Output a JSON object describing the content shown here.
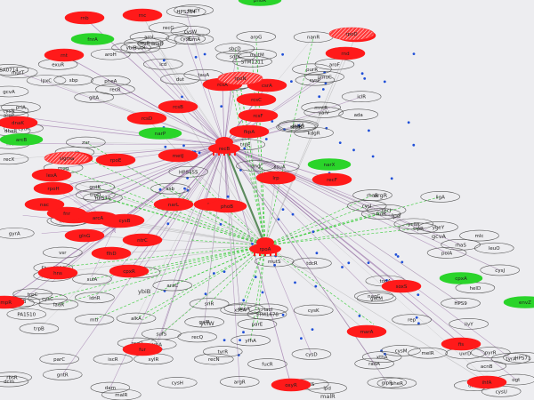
{
  "colors": {
    "background": "#ededf0",
    "red_node": "#ff1a1a",
    "green_node": "#2ad42a",
    "white_node_stroke": "#555555",
    "edge_purple": "#8a5a9a",
    "edge_green": "#33cc33",
    "edge_gray": "#9a9a9a",
    "dot_blue": "#1f4fd8"
  },
  "nodes": {
    "red": [
      {
        "id": "r1",
        "label": "rnb"
      },
      {
        "id": "r2",
        "label": "rnc"
      },
      {
        "id": "r3",
        "label": "rnt"
      },
      {
        "id": "r4",
        "label": "rnd"
      },
      {
        "id": "r5",
        "label": "rcsA"
      },
      {
        "id": "r6",
        "label": "rcsB"
      },
      {
        "id": "r7",
        "label": "rcsC"
      },
      {
        "id": "r8",
        "label": "rcsD"
      },
      {
        "id": "r9",
        "label": "rcsF"
      },
      {
        "id": "r10",
        "label": "fkpA"
      },
      {
        "id": "r11",
        "label": "dnaK"
      },
      {
        "id": "r12",
        "label": "htpG"
      },
      {
        "id": "r13",
        "label": "rpoS"
      },
      {
        "id": "r14",
        "label": "recA"
      },
      {
        "id": "r15",
        "label": "recF"
      },
      {
        "id": "r16",
        "label": "lexA"
      },
      {
        "id": "r17",
        "label": "rpoH"
      },
      {
        "id": "r18",
        "label": "flhD"
      },
      {
        "id": "r19",
        "label": "cpxR"
      },
      {
        "id": "r20",
        "label": "rpoE"
      },
      {
        "id": "r21",
        "label": "rseA"
      },
      {
        "id": "r22",
        "label": "hns"
      },
      {
        "id": "r23",
        "label": "ompR"
      },
      {
        "id": "r24",
        "label": "fur"
      },
      {
        "id": "r25",
        "label": "soxS"
      },
      {
        "id": "r26",
        "label": "marA"
      },
      {
        "id": "r27",
        "label": "oxyR"
      },
      {
        "id": "r28",
        "label": "ihfA"
      },
      {
        "id": "r29",
        "label": "fis"
      },
      {
        "id": "r30",
        "label": "arcA"
      },
      {
        "id": "r31",
        "label": "fnr"
      },
      {
        "id": "r32",
        "label": "narL"
      },
      {
        "id": "r33",
        "label": "phoB"
      },
      {
        "id": "r34",
        "label": "crp"
      },
      {
        "id": "r35",
        "label": "csrA"
      },
      {
        "id": "r36",
        "label": "lrp"
      },
      {
        "id": "r37",
        "label": "nac"
      },
      {
        "id": "r38",
        "label": "glnG"
      },
      {
        "id": "r39",
        "label": "ntrC"
      },
      {
        "id": "r40",
        "label": "cysB"
      },
      {
        "id": "r41",
        "label": "metJ"
      }
    ],
    "red_hatched": [
      {
        "id": "h1",
        "label": "rpoD"
      },
      {
        "id": "h2",
        "label": "rpoN"
      },
      {
        "id": "h3",
        "label": "sigma"
      }
    ],
    "hubs": [
      {
        "id": "hub1",
        "label": "recB"
      },
      {
        "id": "hub2",
        "label": "rpoA"
      }
    ],
    "green": [
      {
        "id": "g1",
        "label": "fnrA"
      },
      {
        "id": "g2",
        "label": "arcB"
      },
      {
        "id": "g3",
        "label": "narX"
      },
      {
        "id": "g4",
        "label": "cpxA"
      },
      {
        "id": "g5",
        "label": "envZ"
      },
      {
        "id": "g6",
        "label": "phoR"
      },
      {
        "id": "g7",
        "label": "narP"
      }
    ],
    "white": [
      {
        "id": "w1",
        "label": "cysE"
      },
      {
        "id": "w2",
        "label": "sbcD"
      },
      {
        "id": "w3",
        "label": "lpxC"
      },
      {
        "id": "w4",
        "label": "recR"
      },
      {
        "id": "w5",
        "label": "topB"
      },
      {
        "id": "w6",
        "label": "HPS10"
      },
      {
        "id": "w7",
        "label": "yjiG"
      },
      {
        "id": "w8",
        "label": "PA1510"
      },
      {
        "id": "w9",
        "label": "recO"
      },
      {
        "id": "w10",
        "label": "xseA"
      },
      {
        "id": "w11",
        "label": "mutS"
      },
      {
        "id": "w12",
        "label": "uvrD"
      },
      {
        "id": "w13",
        "label": "polA"
      },
      {
        "id": "w14",
        "label": "ligA"
      },
      {
        "id": "w15",
        "label": "recN"
      },
      {
        "id": "w16",
        "label": "radA"
      },
      {
        "id": "w17",
        "label": "recX"
      },
      {
        "id": "w18",
        "label": "sulA"
      },
      {
        "id": "w19",
        "label": "umuC"
      },
      {
        "id": "w20",
        "label": "dinB"
      },
      {
        "id": "w21",
        "label": "recG"
      },
      {
        "id": "w22",
        "label": "ruvC"
      },
      {
        "id": "w23",
        "label": "priA"
      },
      {
        "id": "w24",
        "label": "dnaB"
      },
      {
        "id": "w25",
        "label": "dnaG"
      },
      {
        "id": "w26",
        "label": "ssb"
      },
      {
        "id": "w27",
        "label": "gyrA"
      },
      {
        "id": "w28",
        "label": "gyrB"
      },
      {
        "id": "w29",
        "label": "parC"
      },
      {
        "id": "w30",
        "label": "parE"
      },
      {
        "id": "w31",
        "label": "topA"
      },
      {
        "id": "w32",
        "label": "rep"
      },
      {
        "id": "w33",
        "label": "helD"
      },
      {
        "id": "w34",
        "label": "recJ"
      },
      {
        "id": "w35",
        "label": "recQ"
      },
      {
        "id": "w36",
        "label": "xthA"
      },
      {
        "id": "w37",
        "label": "nfo"
      },
      {
        "id": "w38",
        "label": "alkA"
      },
      {
        "id": "w39",
        "label": "ada"
      },
      {
        "id": "w40",
        "label": "ogt"
      },
      {
        "id": "w41",
        "label": "mutY"
      },
      {
        "id": "w42",
        "label": "mutM"
      },
      {
        "id": "w43",
        "label": "mutT"
      },
      {
        "id": "w44",
        "label": "dut"
      },
      {
        "id": "w45",
        "label": "ung"
      },
      {
        "id": "w46",
        "label": "mug"
      },
      {
        "id": "w47",
        "label": "vsr"
      },
      {
        "id": "w48",
        "label": "dcm"
      },
      {
        "id": "w49",
        "label": "dam"
      },
      {
        "id": "w50",
        "label": "seqA"
      },
      {
        "id": "w51",
        "label": "STM1678"
      },
      {
        "id": "w52",
        "label": "HPS9"
      },
      {
        "id": "w53",
        "label": "ybeY"
      },
      {
        "id": "w54",
        "label": "yciW"
      },
      {
        "id": "w55",
        "label": "argR"
      },
      {
        "id": "w56",
        "label": "lpd"
      },
      {
        "id": "w57",
        "label": "gcvA"
      },
      {
        "id": "w58",
        "label": "Fbp_1758"
      },
      {
        "id": "w59",
        "label": "yaiV"
      },
      {
        "id": "w60",
        "label": "HPS71"
      },
      {
        "id": "w61",
        "label": "HPS264"
      },
      {
        "id": "w62",
        "label": "STM1211"
      },
      {
        "id": "w63",
        "label": "SA0714"
      },
      {
        "id": "w64",
        "label": "ybiB"
      },
      {
        "id": "w65",
        "label": "mntR"
      },
      {
        "id": "w66",
        "label": "zur"
      },
      {
        "id": "w67",
        "label": "modE"
      },
      {
        "id": "w68",
        "label": "nikR"
      },
      {
        "id": "w69",
        "label": "iscR"
      },
      {
        "id": "w70",
        "label": "sufS"
      },
      {
        "id": "w71",
        "label": "cysK"
      },
      {
        "id": "w72",
        "label": "cysM"
      },
      {
        "id": "w73",
        "label": "cysJ"
      },
      {
        "id": "w74",
        "label": "cysI"
      },
      {
        "id": "w75",
        "label": "cysH"
      },
      {
        "id": "w76",
        "label": "cysD"
      },
      {
        "id": "w77",
        "label": "cysN"
      },
      {
        "id": "w78",
        "label": "cysC"
      },
      {
        "id": "w79",
        "label": "cysP"
      },
      {
        "id": "w80",
        "label": "cysU"
      },
      {
        "id": "w81",
        "label": "cysW"
      },
      {
        "id": "w82",
        "label": "cysA"
      },
      {
        "id": "w83",
        "label": "sbp"
      },
      {
        "id": "w84",
        "label": "tauA"
      },
      {
        "id": "w85",
        "label": "ssuA"
      },
      {
        "id": "w86",
        "label": "HPS455"
      },
      {
        "id": "w87",
        "label": "Fbp_1818"
      },
      {
        "id": "w88",
        "label": "gntR"
      },
      {
        "id": "w89",
        "label": "malR"
      },
      {
        "id": "w90",
        "label": "yfhA"
      },
      {
        "id": "w91",
        "label": "tdcR"
      },
      {
        "id": "w92",
        "label": "ilvY"
      },
      {
        "id": "w93",
        "label": "leuO"
      },
      {
        "id": "w94",
        "label": "trpR"
      },
      {
        "id": "w95",
        "label": "tyrR"
      },
      {
        "id": "w96",
        "label": "pheR"
      },
      {
        "id": "w97",
        "label": "aroP"
      },
      {
        "id": "w98",
        "label": "mtr"
      },
      {
        "id": "w99",
        "label": "aroF"
      },
      {
        "id": "w100",
        "label": "tyrA"
      },
      {
        "id": "w101",
        "label": "aroL"
      },
      {
        "id": "w102",
        "label": "aroG"
      },
      {
        "id": "w103",
        "label": "pheA"
      },
      {
        "id": "w104",
        "label": "aroH"
      },
      {
        "id": "w105",
        "label": "trpE"
      },
      {
        "id": "w106",
        "label": "trpD"
      },
      {
        "id": "w107",
        "label": "trpC"
      },
      {
        "id": "w108",
        "label": "trpB"
      },
      {
        "id": "w109",
        "label": "trpA"
      },
      {
        "id": "w110",
        "label": "srlR"
      },
      {
        "id": "w111",
        "label": "gutM"
      },
      {
        "id": "w112",
        "label": "nagC"
      },
      {
        "id": "w113",
        "label": "mlc"
      },
      {
        "id": "w114",
        "label": "fruR"
      },
      {
        "id": "w115",
        "label": "galR"
      },
      {
        "id": "w116",
        "label": "galS"
      },
      {
        "id": "w117",
        "label": "cytR"
      },
      {
        "id": "w118",
        "label": "deoR"
      },
      {
        "id": "w119",
        "label": "purR"
      },
      {
        "id": "w120",
        "label": "pyrR"
      },
      {
        "id": "w121",
        "label": "rutR"
      },
      {
        "id": "w122",
        "label": "nanR"
      },
      {
        "id": "w123",
        "label": "exuR"
      },
      {
        "id": "w124",
        "label": "uxuR"
      },
      {
        "id": "w125",
        "label": "kdgR"
      },
      {
        "id": "w126",
        "label": "gntK"
      },
      {
        "id": "w127",
        "label": "idnR"
      },
      {
        "id": "w128",
        "label": "rbsR"
      },
      {
        "id": "w129",
        "label": "xylR"
      },
      {
        "id": "w130",
        "label": "araC"
      },
      {
        "id": "w131",
        "label": "lacI"
      },
      {
        "id": "w132",
        "label": "melR"
      },
      {
        "id": "w133",
        "label": "rhaS"
      },
      {
        "id": "w134",
        "label": "rhaR"
      },
      {
        "id": "w135",
        "label": "fucR"
      },
      {
        "id": "w136",
        "label": "glpR"
      },
      {
        "id": "w137",
        "label": "dhaR"
      },
      {
        "id": "w138",
        "label": "fadR"
      },
      {
        "id": "w139",
        "label": "iclR"
      },
      {
        "id": "w140",
        "label": "acnB"
      },
      {
        "id": "w141",
        "label": "fumA"
      },
      {
        "id": "w142",
        "label": "sdhC"
      },
      {
        "id": "w143",
        "label": "gltA"
      },
      {
        "id": "w144",
        "label": "icd"
      },
      {
        "id": "w145",
        "label": "sucA"
      },
      {
        "id": "w146",
        "label": "mdh"
      }
    ]
  },
  "floating_labels": [
    {
      "id": "f1",
      "label": "argR"
    },
    {
      "id": "f2",
      "label": "yciW"
    },
    {
      "id": "f3",
      "label": "gcvA"
    },
    {
      "id": "f4",
      "label": "malR"
    },
    {
      "id": "f5",
      "label": "ybiB"
    },
    {
      "id": "f6",
      "label": "lpd"
    }
  ]
}
